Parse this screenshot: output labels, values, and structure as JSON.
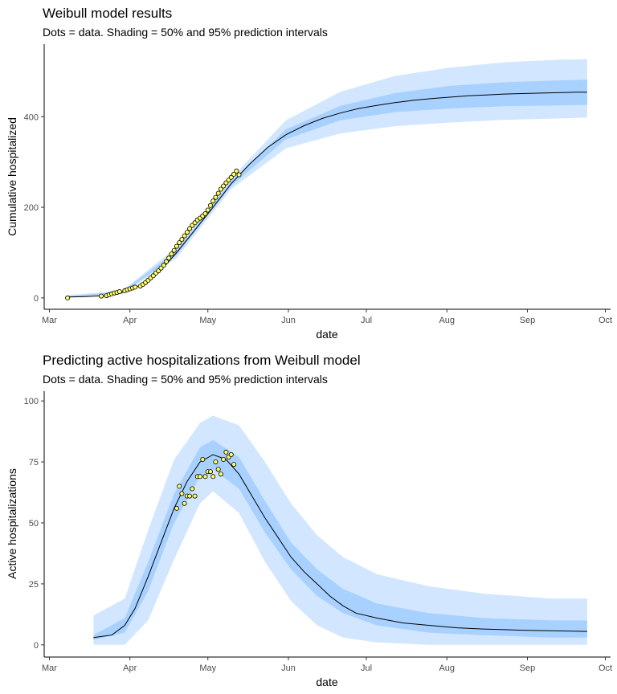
{
  "chart_data": [
    {
      "type": "line",
      "title": "Weibull model results",
      "subtitle": "Dots = data. Shading = 50% and 95% prediction intervals",
      "xlabel": "date",
      "ylabel": "Cumulative hospitalized",
      "xlim": [
        "2020-02-28",
        "2020-10-03"
      ],
      "ylim": [
        -25,
        560
      ],
      "x_ticks": [
        {
          "date": "2020-03-01",
          "label": "Mar"
        },
        {
          "date": "2020-04-01",
          "label": "Apr"
        },
        {
          "date": "2020-05-01",
          "label": "May"
        },
        {
          "date": "2020-06-01",
          "label": "Jun"
        },
        {
          "date": "2020-07-01",
          "label": "Jul"
        },
        {
          "date": "2020-08-01",
          "label": "Aug"
        },
        {
          "date": "2020-09-01",
          "label": "Sep"
        },
        {
          "date": "2020-10-01",
          "label": "Oct"
        }
      ],
      "y_ticks": [
        0,
        200,
        400
      ],
      "colors": {
        "band95": "#d2e7ff",
        "band50": "#a8d1ff",
        "line": "#000000",
        "dots": "#ffff66"
      },
      "series": [
        {
          "role": "median",
          "x": [
            "2020-03-08",
            "2020-03-15",
            "2020-03-22",
            "2020-03-29",
            "2020-04-05",
            "2020-04-12",
            "2020-04-19",
            "2020-04-26",
            "2020-05-03",
            "2020-05-10",
            "2020-05-17",
            "2020-05-24",
            "2020-05-31",
            "2020-06-07",
            "2020-06-14",
            "2020-06-21",
            "2020-06-28",
            "2020-07-05",
            "2020-07-12",
            "2020-07-19",
            "2020-07-26",
            "2020-08-02",
            "2020-08-09",
            "2020-08-16",
            "2020-08-23",
            "2020-08-30",
            "2020-09-06",
            "2020-09-13",
            "2020-09-20",
            "2020-09-24"
          ],
          "values": [
            2,
            3,
            5,
            12,
            28,
            55,
            100,
            150,
            200,
            252,
            295,
            332,
            360,
            380,
            396,
            408,
            418,
            425,
            431,
            436,
            440,
            443,
            446,
            448,
            450,
            451,
            452,
            453,
            454,
            454
          ]
        },
        {
          "role": "pi50",
          "x": [
            "2020-03-08",
            "2020-03-29",
            "2020-04-19",
            "2020-05-10",
            "2020-05-31",
            "2020-06-21",
            "2020-07-12",
            "2020-08-02",
            "2020-08-23",
            "2020-09-13",
            "2020-09-24"
          ],
          "lower": [
            1,
            10,
            95,
            247,
            350,
            392,
            410,
            418,
            423,
            425,
            426
          ],
          "upper": [
            4,
            14,
            105,
            257,
            372,
            424,
            452,
            468,
            476,
            480,
            482
          ]
        },
        {
          "role": "pi95",
          "x": [
            "2020-03-08",
            "2020-03-29",
            "2020-04-19",
            "2020-05-10",
            "2020-05-31",
            "2020-06-21",
            "2020-07-12",
            "2020-08-02",
            "2020-08-23",
            "2020-09-13",
            "2020-09-24"
          ],
          "lower": [
            0,
            8,
            88,
            240,
            330,
            363,
            379,
            387,
            393,
            396,
            398
          ],
          "upper": [
            6,
            16,
            112,
            264,
            392,
            455,
            490,
            508,
            520,
            526,
            527
          ]
        },
        {
          "role": "data",
          "x": [
            "2020-03-08",
            "2020-03-21",
            "2020-03-23",
            "2020-03-24",
            "2020-03-25",
            "2020-03-26",
            "2020-03-27",
            "2020-03-28",
            "2020-03-30",
            "2020-03-31",
            "2020-04-01",
            "2020-04-02",
            "2020-04-03",
            "2020-04-05",
            "2020-04-06",
            "2020-04-07",
            "2020-04-08",
            "2020-04-09",
            "2020-04-10",
            "2020-04-11",
            "2020-04-12",
            "2020-04-13",
            "2020-04-14",
            "2020-04-15",
            "2020-04-16",
            "2020-04-17",
            "2020-04-18",
            "2020-04-19",
            "2020-04-20",
            "2020-04-21",
            "2020-04-22",
            "2020-04-23",
            "2020-04-24",
            "2020-04-25",
            "2020-04-26",
            "2020-04-27",
            "2020-04-28",
            "2020-04-29",
            "2020-04-30",
            "2020-05-01",
            "2020-05-02",
            "2020-05-03",
            "2020-05-04",
            "2020-05-05",
            "2020-05-06",
            "2020-05-07",
            "2020-05-08",
            "2020-05-09",
            "2020-05-10",
            "2020-05-11",
            "2020-05-12",
            "2020-05-13"
          ],
          "values": [
            0,
            4,
            5,
            7,
            9,
            11,
            12,
            14,
            16,
            18,
            20,
            22,
            24,
            26,
            30,
            34,
            39,
            44,
            49,
            55,
            60,
            66,
            72,
            80,
            88,
            97,
            105,
            114,
            122,
            129,
            137,
            145,
            153,
            160,
            166,
            172,
            176,
            181,
            186,
            194,
            204,
            214,
            222,
            231,
            240,
            247,
            254,
            260,
            266,
            273,
            280,
            272
          ]
        }
      ]
    },
    {
      "type": "line",
      "title": "Predicting active hospitalizations from Weibull model",
      "subtitle": "Dots = data. Shading = 50% and 95% prediction intervals",
      "xlabel": "date",
      "ylabel": "Active hospitalizations",
      "xlim": [
        "2020-02-28",
        "2020-10-03"
      ],
      "ylim": [
        -5,
        104
      ],
      "x_ticks": [
        {
          "date": "2020-03-01",
          "label": "Mar"
        },
        {
          "date": "2020-04-01",
          "label": "Apr"
        },
        {
          "date": "2020-05-01",
          "label": "May"
        },
        {
          "date": "2020-06-01",
          "label": "Jun"
        },
        {
          "date": "2020-07-01",
          "label": "Jul"
        },
        {
          "date": "2020-08-01",
          "label": "Aug"
        },
        {
          "date": "2020-09-01",
          "label": "Sep"
        },
        {
          "date": "2020-10-01",
          "label": "Oct"
        }
      ],
      "y_ticks": [
        0,
        25,
        50,
        75,
        100
      ],
      "colors": {
        "band95": "#d2e7ff",
        "band50": "#a8d1ff",
        "line": "#000000",
        "dots": "#ffff66"
      },
      "series": [
        {
          "role": "median",
          "x": [
            "2020-03-18",
            "2020-03-25",
            "2020-03-30",
            "2020-04-03",
            "2020-04-08",
            "2020-04-13",
            "2020-04-18",
            "2020-04-23",
            "2020-04-28",
            "2020-05-03",
            "2020-05-08",
            "2020-05-13",
            "2020-05-18",
            "2020-05-23",
            "2020-05-28",
            "2020-06-02",
            "2020-06-07",
            "2020-06-12",
            "2020-06-17",
            "2020-06-22",
            "2020-06-27",
            "2020-07-05",
            "2020-07-15",
            "2020-07-25",
            "2020-08-05",
            "2020-08-15",
            "2020-08-30",
            "2020-09-10",
            "2020-09-24"
          ],
          "values": [
            3,
            4,
            8,
            15,
            28,
            42,
            56,
            67,
            75,
            78,
            76,
            70,
            61,
            52,
            44,
            36,
            30,
            25,
            20,
            16,
            13,
            11,
            9,
            8,
            7,
            6.5,
            6,
            5.8,
            5.5
          ]
        },
        {
          "role": "pi50",
          "x": [
            "2020-03-18",
            "2020-03-30",
            "2020-04-08",
            "2020-04-18",
            "2020-04-28",
            "2020-05-03",
            "2020-05-13",
            "2020-05-23",
            "2020-06-02",
            "2020-06-12",
            "2020-06-22",
            "2020-07-05",
            "2020-07-25",
            "2020-08-15",
            "2020-09-10",
            "2020-09-24"
          ],
          "lower": [
            2,
            5,
            22,
            50,
            69,
            72,
            64,
            46,
            31,
            20,
            13,
            8,
            5,
            4,
            3,
            3
          ],
          "upper": [
            4,
            11,
            34,
            62,
            81,
            84,
            77,
            59,
            42,
            31,
            23,
            17,
            13,
            11,
            10,
            10
          ]
        },
        {
          "role": "pi95",
          "x": [
            "2020-03-18",
            "2020-03-30",
            "2020-04-08",
            "2020-04-18",
            "2020-04-28",
            "2020-05-03",
            "2020-05-13",
            "2020-05-23",
            "2020-06-02",
            "2020-06-12",
            "2020-06-22",
            "2020-07-05",
            "2020-07-25",
            "2020-08-15",
            "2020-09-10",
            "2020-09-24"
          ],
          "lower": [
            0,
            0,
            10,
            35,
            58,
            63,
            54,
            34,
            18,
            8,
            3,
            1,
            0,
            0,
            0,
            0
          ],
          "upper": [
            12,
            19,
            47,
            76,
            91,
            94,
            90,
            75,
            58,
            45,
            36,
            29,
            24,
            21,
            19,
            19
          ]
        },
        {
          "role": "data",
          "x": [
            "2020-04-19",
            "2020-04-20",
            "2020-04-21",
            "2020-04-22",
            "2020-04-23",
            "2020-04-24",
            "2020-04-25",
            "2020-04-26",
            "2020-04-27",
            "2020-04-28",
            "2020-04-29",
            "2020-04-30",
            "2020-05-01",
            "2020-05-02",
            "2020-05-03",
            "2020-05-04",
            "2020-05-05",
            "2020-05-06",
            "2020-05-07",
            "2020-05-08",
            "2020-05-09",
            "2020-05-10",
            "2020-05-11"
          ],
          "values": [
            56,
            65,
            62,
            58,
            61,
            61,
            64,
            61,
            69,
            69,
            76,
            69,
            71,
            71,
            69,
            75,
            72,
            70,
            76,
            79,
            77,
            78,
            74
          ]
        }
      ]
    }
  ]
}
